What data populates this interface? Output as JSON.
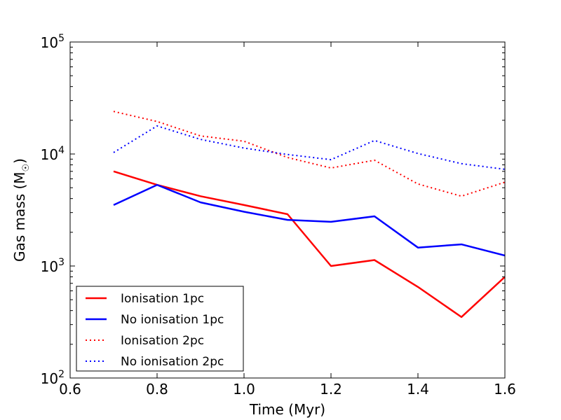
{
  "chart_data": {
    "type": "line",
    "title": "",
    "xlabel": "Time (Myr)",
    "ylabel_main": "Gas mass (M",
    "ylabel_sub": "☉",
    "ylabel_close": ")",
    "yscale": "log",
    "xlim": [
      0.6,
      1.6
    ],
    "ylim": [
      100,
      100000
    ],
    "x_ticks": [
      {
        "value": 0.6,
        "label": "0.6"
      },
      {
        "value": 0.8,
        "label": "0.8"
      },
      {
        "value": 1.0,
        "label": "1.0"
      },
      {
        "value": 1.2,
        "label": "1.2"
      },
      {
        "value": 1.4,
        "label": "1.4"
      },
      {
        "value": 1.6,
        "label": "1.6"
      }
    ],
    "y_ticks": [
      {
        "value": 100,
        "base": "10",
        "exp": "2"
      },
      {
        "value": 1000,
        "base": "10",
        "exp": "3"
      },
      {
        "value": 10000,
        "base": "10",
        "exp": "4"
      },
      {
        "value": 100000,
        "base": "10",
        "exp": "5"
      }
    ],
    "grid": false,
    "legend_position": "lower-left",
    "x": [
      0.7,
      0.8,
      0.9,
      1.0,
      1.1,
      1.2,
      1.3,
      1.4,
      1.5,
      1.6
    ],
    "series": [
      {
        "name": "Ionisation 1pc",
        "color": "#ff0000",
        "style": "solid",
        "values": [
          7000,
          5300,
          4200,
          3500,
          2900,
          1000,
          1130,
          650,
          350,
          800
        ]
      },
      {
        "name": "No ionisation 1pc",
        "color": "#0000ff",
        "style": "solid",
        "values": [
          3500,
          5300,
          3700,
          3050,
          2580,
          2480,
          2780,
          1460,
          1560,
          1240
        ]
      },
      {
        "name": "Ionisation 2pc",
        "color": "#ff0000",
        "style": "dotted",
        "values": [
          24000,
          19500,
          14500,
          13000,
          9300,
          7500,
          8800,
          5400,
          4200,
          5600
        ]
      },
      {
        "name": "No ionisation 2pc",
        "color": "#0000ff",
        "style": "dotted",
        "values": [
          10300,
          17800,
          13500,
          11300,
          9900,
          8900,
          13200,
          10100,
          8200,
          7300
        ]
      }
    ]
  }
}
